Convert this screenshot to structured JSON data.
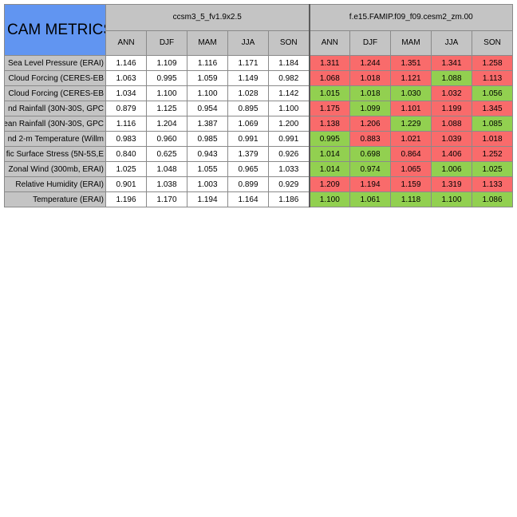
{
  "table": {
    "title": "CAM METRICS",
    "groups": [
      {
        "name": "ccsm3_5_fv1.9x2.5"
      },
      {
        "name": "f.e15.FAMIP.f09_f09.cesm2_zm.00"
      }
    ],
    "seasons": [
      "ANN",
      "DJF",
      "MAM",
      "JJA",
      "SON"
    ],
    "colors": {
      "bad": "#f96b6b",
      "good": "#92d050",
      "neutral": "#ffffff",
      "header": "#c4c4c4",
      "title": "#6195f1"
    },
    "rows": [
      {
        "name": "Sea Level Pressure (ERAI)",
        "g1": [
          "1.146",
          "1.109",
          "1.116",
          "1.171",
          "1.184"
        ],
        "g2": [
          "1.311",
          "1.244",
          "1.351",
          "1.341",
          "1.258"
        ],
        "g2_status": [
          "bad",
          "bad",
          "bad",
          "bad",
          "bad"
        ]
      },
      {
        "name": "Cloud Forcing (CERES-EB",
        "g1": [
          "1.063",
          "0.995",
          "1.059",
          "1.149",
          "0.982"
        ],
        "g2": [
          "1.068",
          "1.018",
          "1.121",
          "1.088",
          "1.113"
        ],
        "g2_status": [
          "bad",
          "bad",
          "bad",
          "good",
          "bad"
        ]
      },
      {
        "name": "Cloud Forcing (CERES-EB",
        "g1": [
          "1.034",
          "1.100",
          "1.100",
          "1.028",
          "1.142"
        ],
        "g2": [
          "1.015",
          "1.018",
          "1.030",
          "1.032",
          "1.056"
        ],
        "g2_status": [
          "good",
          "good",
          "good",
          "bad",
          "good"
        ]
      },
      {
        "name": "nd Rainfall (30N-30S, GPC",
        "g1": [
          "0.879",
          "1.125",
          "0.954",
          "0.895",
          "1.100"
        ],
        "g2": [
          "1.175",
          "1.099",
          "1.101",
          "1.199",
          "1.345"
        ],
        "g2_status": [
          "bad",
          "good",
          "bad",
          "bad",
          "bad"
        ]
      },
      {
        "name": "ean Rainfall (30N-30S, GPC",
        "g1": [
          "1.116",
          "1.204",
          "1.387",
          "1.069",
          "1.200"
        ],
        "g2": [
          "1.138",
          "1.206",
          "1.229",
          "1.088",
          "1.085"
        ],
        "g2_status": [
          "bad",
          "bad",
          "good",
          "bad",
          "good"
        ]
      },
      {
        "name": "nd 2-m Temperature (Willm",
        "g1": [
          "0.983",
          "0.960",
          "0.985",
          "0.991",
          "0.991"
        ],
        "g2": [
          "0.995",
          "0.883",
          "1.021",
          "1.039",
          "1.018"
        ],
        "g2_status": [
          "good",
          "bad",
          "bad",
          "bad",
          "bad"
        ]
      },
      {
        "name": "fic Surface Stress (5N-5S,E",
        "g1": [
          "0.840",
          "0.625",
          "0.943",
          "1.379",
          "0.926"
        ],
        "g2": [
          "1.014",
          "0.698",
          "0.864",
          "1.406",
          "1.252"
        ],
        "g2_status": [
          "good",
          "good",
          "bad",
          "bad",
          "bad"
        ]
      },
      {
        "name": "Zonal Wind (300mb, ERAI)",
        "g1": [
          "1.025",
          "1.048",
          "1.055",
          "0.965",
          "1.033"
        ],
        "g2": [
          "1.014",
          "0.974",
          "1.065",
          "1.006",
          "1.025"
        ],
        "g2_status": [
          "good",
          "good",
          "bad",
          "good",
          "good"
        ]
      },
      {
        "name": "Relative Humidity (ERAI)",
        "g1": [
          "0.901",
          "1.038",
          "1.003",
          "0.899",
          "0.929"
        ],
        "g2": [
          "1.209",
          "1.194",
          "1.159",
          "1.319",
          "1.133"
        ],
        "g2_status": [
          "bad",
          "bad",
          "bad",
          "bad",
          "bad"
        ]
      },
      {
        "name": "Temperature (ERAI)",
        "g1": [
          "1.196",
          "1.170",
          "1.194",
          "1.164",
          "1.186"
        ],
        "g2": [
          "1.100",
          "1.061",
          "1.118",
          "1.100",
          "1.086"
        ],
        "g2_status": [
          "good",
          "good",
          "good",
          "good",
          "good"
        ]
      }
    ]
  },
  "chart_data": {
    "type": "table",
    "title": "CAM METRICS",
    "column_groups": [
      "ccsm3_5_fv1.9x2.5",
      "f.e15.FAMIP.f09_f09.cesm2_zm.00"
    ],
    "columns": [
      "ANN",
      "DJF",
      "MAM",
      "JJA",
      "SON"
    ],
    "row_labels": [
      "Sea Level Pressure (ERAI)",
      "Cloud Forcing (CERES-EB",
      "Cloud Forcing (CERES-EB",
      "nd Rainfall (30N-30S, GPC",
      "ean Rainfall (30N-30S, GPC",
      "nd 2-m Temperature (Willm",
      "fic Surface Stress (5N-5S,E",
      "Zonal Wind (300mb, ERAI)",
      "Relative Humidity (ERAI)",
      "Temperature (ERAI)"
    ],
    "series": [
      {
        "name": "ccsm3_5_fv1.9x2.5",
        "values": [
          [
            1.146,
            1.109,
            1.116,
            1.171,
            1.184
          ],
          [
            1.063,
            0.995,
            1.059,
            1.149,
            0.982
          ],
          [
            1.034,
            1.1,
            1.1,
            1.028,
            1.142
          ],
          [
            0.879,
            1.125,
            0.954,
            0.895,
            1.1
          ],
          [
            1.116,
            1.204,
            1.387,
            1.069,
            1.2
          ],
          [
            0.983,
            0.96,
            0.985,
            0.991,
            0.991
          ],
          [
            0.84,
            0.625,
            0.943,
            1.379,
            0.926
          ],
          [
            1.025,
            1.048,
            1.055,
            0.965,
            1.033
          ],
          [
            0.901,
            1.038,
            1.003,
            0.899,
            0.929
          ],
          [
            1.196,
            1.17,
            1.194,
            1.164,
            1.186
          ]
        ]
      },
      {
        "name": "f.e15.FAMIP.f09_f09.cesm2_zm.00",
        "values": [
          [
            1.311,
            1.244,
            1.351,
            1.341,
            1.258
          ],
          [
            1.068,
            1.018,
            1.121,
            1.088,
            1.113
          ],
          [
            1.015,
            1.018,
            1.03,
            1.032,
            1.056
          ],
          [
            1.175,
            1.099,
            1.101,
            1.199,
            1.345
          ],
          [
            1.138,
            1.206,
            1.229,
            1.088,
            1.085
          ],
          [
            0.995,
            0.883,
            1.021,
            1.039,
            1.018
          ],
          [
            1.014,
            0.698,
            0.864,
            1.406,
            1.252
          ],
          [
            1.014,
            0.974,
            1.065,
            1.006,
            1.025
          ],
          [
            1.209,
            1.194,
            1.159,
            1.319,
            1.133
          ],
          [
            1.1,
            1.061,
            1.118,
            1.1,
            1.086
          ]
        ]
      }
    ]
  }
}
